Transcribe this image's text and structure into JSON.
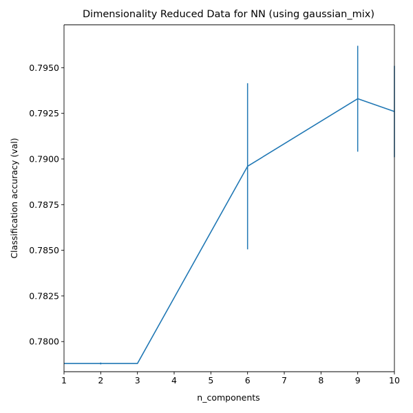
{
  "chart_data": {
    "type": "line",
    "title": "Dimensionality Reduced Data for NN (using gaussian_mix)",
    "xlabel": "n_components",
    "ylabel": "Classification accuracy (val)",
    "xlim": [
      1,
      10
    ],
    "ylim": [
      0.77835,
      0.79735
    ],
    "xticks": [
      1,
      2,
      3,
      4,
      5,
      6,
      7,
      8,
      9,
      10
    ],
    "yticks": [
      "0.7800",
      "0.7825",
      "0.7850",
      "0.7875",
      "0.7900",
      "0.7925",
      "0.7950"
    ],
    "ytick_values": [
      0.78,
      0.7825,
      0.785,
      0.7875,
      0.79,
      0.7925,
      0.795
    ],
    "grid": false,
    "series": [
      {
        "x": [
          1,
          2,
          3,
          6,
          9,
          10
        ],
        "y": [
          0.7788,
          0.7788,
          0.7788,
          0.7896,
          0.7933,
          0.7926
        ],
        "err": [
          0,
          5e-05,
          0,
          0.00455,
          0.0029,
          0.0025
        ],
        "color": "#1f77b4"
      }
    ]
  }
}
